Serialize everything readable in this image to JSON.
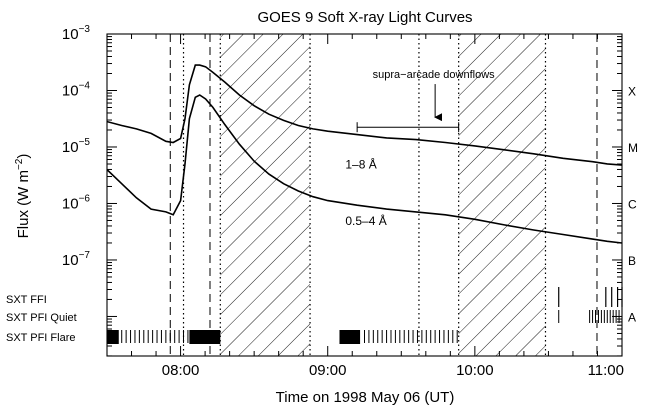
{
  "chart_data": {
    "type": "line",
    "title": "GOES 9 Soft X-ray Light Curves",
    "xlabel": "Time on 1998 May 06 (UT)",
    "ylabel": "Flux (W m⁻²)",
    "ylabel_base": "Flux (W m",
    "ylabel_exp": "−2",
    "ylabel_close": ")",
    "x_unit": "hours UT",
    "xlim": [
      7.5,
      11.0
    ],
    "ylim_log10": [
      -8.7,
      -3.0
    ],
    "log_scale_y": true,
    "x_ticks": [
      {
        "value": 8.0,
        "label": "08:00"
      },
      {
        "value": 9.0,
        "label": "09:00"
      },
      {
        "value": 10.0,
        "label": "10:00"
      },
      {
        "value": 11.0,
        "label": "11:00"
      }
    ],
    "y_ticks": [
      {
        "exp": -3,
        "base": "10",
        "label": "−3"
      },
      {
        "exp": -4,
        "base": "10",
        "label": "−4"
      },
      {
        "exp": -5,
        "base": "10",
        "label": "−5"
      },
      {
        "exp": -6,
        "base": "10",
        "label": "−6"
      },
      {
        "exp": -7,
        "base": "10",
        "label": "−7"
      }
    ],
    "class_labels": [
      {
        "exp": -4,
        "label": "X"
      },
      {
        "exp": -5,
        "label": "M"
      },
      {
        "exp": -6,
        "label": "C"
      },
      {
        "exp": -7,
        "label": "B"
      },
      {
        "exp": -8,
        "label": "A"
      }
    ],
    "series": [
      {
        "name": "1–8 Å",
        "label_at": [
          9.12,
          -5.38
        ],
        "x": [
          7.5,
          7.6,
          7.7,
          7.8,
          7.9,
          7.95,
          8.0,
          8.03,
          8.06,
          8.1,
          8.13,
          8.17,
          8.22,
          8.3,
          8.4,
          8.5,
          8.6,
          8.7,
          8.8,
          8.9,
          9.0,
          9.2,
          9.4,
          9.6,
          9.8,
          10.0,
          10.2,
          10.4,
          10.6,
          10.8,
          10.9,
          11.0
        ],
        "log10_y": [
          -4.55,
          -4.62,
          -4.68,
          -4.76,
          -4.9,
          -4.92,
          -4.85,
          -4.5,
          -3.9,
          -3.55,
          -3.55,
          -3.58,
          -3.68,
          -3.85,
          -4.08,
          -4.27,
          -4.42,
          -4.53,
          -4.62,
          -4.68,
          -4.72,
          -4.78,
          -4.84,
          -4.87,
          -4.92,
          -4.98,
          -5.05,
          -5.12,
          -5.2,
          -5.26,
          -5.3,
          -5.32
        ]
      },
      {
        "name": "0.5–4 Å",
        "label_at": [
          9.12,
          -6.38
        ],
        "x": [
          7.5,
          7.6,
          7.7,
          7.8,
          7.9,
          7.95,
          8.0,
          8.03,
          8.06,
          8.1,
          8.13,
          8.17,
          8.22,
          8.3,
          8.4,
          8.5,
          8.6,
          8.7,
          8.8,
          8.9,
          9.0,
          9.2,
          9.4,
          9.6,
          9.8,
          10.0,
          10.2,
          10.4,
          10.6,
          10.8,
          10.9,
          11.0
        ],
        "log10_y": [
          -5.4,
          -5.65,
          -5.9,
          -6.1,
          -6.15,
          -6.2,
          -5.95,
          -5.3,
          -4.5,
          -4.12,
          -4.08,
          -4.15,
          -4.3,
          -4.6,
          -4.95,
          -5.25,
          -5.48,
          -5.65,
          -5.78,
          -5.88,
          -5.95,
          -6.03,
          -6.1,
          -6.15,
          -6.2,
          -6.28,
          -6.38,
          -6.47,
          -6.55,
          -6.63,
          -6.67,
          -6.7
        ]
      }
    ],
    "dashed_lines_x": [
      7.93,
      8.2,
      10.83
    ],
    "dotted_lines_x": [
      8.02,
      8.27,
      8.88,
      9.62,
      9.89,
      10.48
    ],
    "hatched_regions": [
      [
        8.27,
        8.88
      ],
      [
        9.89,
        10.48
      ]
    ],
    "annotation": {
      "text": "supra−arcade downflows",
      "interval": [
        9.2,
        9.89
      ],
      "interval_log10_y": -4.65,
      "arrow_x": 9.73,
      "text_x": 9.72,
      "text_log10_y": -3.78
    },
    "instrument_rows": [
      {
        "label": "SXT FFI",
        "marks_x": [
          10.57,
          10.89,
          10.93,
          10.97,
          11.0
        ],
        "solid_x": [],
        "ticks_x": []
      },
      {
        "label": "SXT PFI Quiet",
        "marks_x": [],
        "solid_x": [],
        "ticks_x": [
          10.57,
          10.78,
          10.8,
          10.82,
          10.84,
          10.86,
          10.88,
          10.9,
          10.92,
          10.94,
          10.96,
          10.98
        ]
      },
      {
        "label": "SXT PFI Flare",
        "marks_x": [],
        "solid_x": [
          [
            7.5,
            7.58
          ],
          [
            8.06,
            8.27
          ],
          [
            9.08,
            9.22
          ]
        ],
        "ticks_x": [
          7.6,
          7.63,
          7.66,
          7.69,
          7.72,
          7.75,
          7.78,
          7.81,
          7.84,
          7.87,
          7.9,
          7.93,
          7.96,
          7.99,
          8.02,
          8.05,
          9.25,
          9.28,
          9.31,
          9.34,
          9.37,
          9.4,
          9.43,
          9.46,
          9.49,
          9.52,
          9.55,
          9.58,
          9.61,
          9.64,
          9.67,
          9.7,
          9.73,
          9.76,
          9.79,
          9.82,
          9.85,
          9.88
        ]
      }
    ]
  }
}
